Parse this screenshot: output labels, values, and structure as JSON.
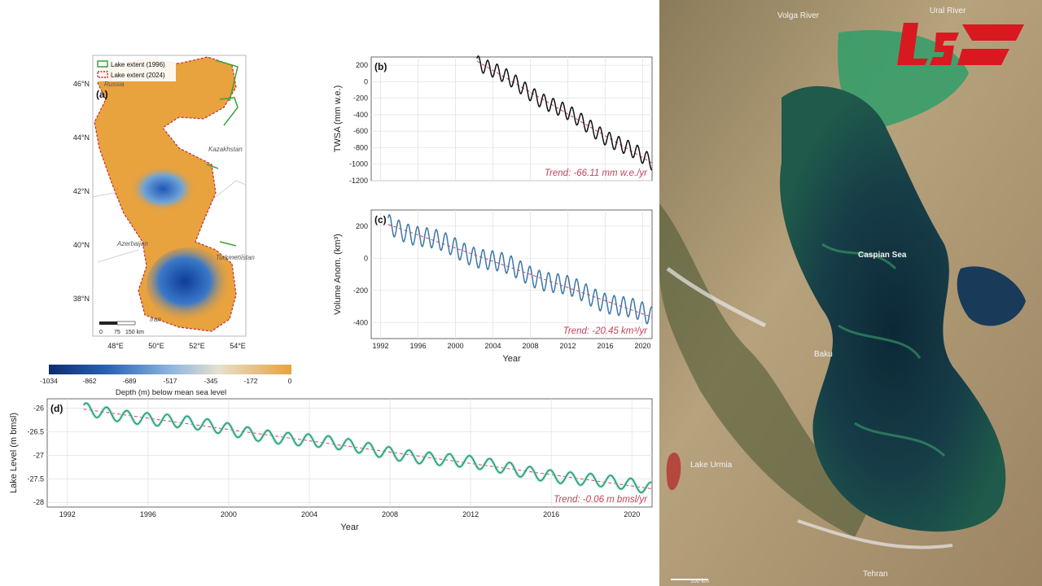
{
  "colors": {
    "twsa_line": "#111111",
    "volume_line": "#3d77a8",
    "level_line": "#1a9a7a",
    "trend_line": "#d0455c",
    "land": "#e8a23e",
    "deep": "#1f56b6",
    "lake_1996": "#3aa13a",
    "lake_2024": "#c8283c",
    "sat_water_deep": "#0f3040",
    "sat_water_bloom": "#2f8f5c",
    "sat_land": "#b09a74",
    "brand_red": "#d81920"
  },
  "panel_a": {
    "label": "(a)",
    "legend": [
      "Lake extent (1996)",
      "Lake extent (2024)"
    ],
    "place_labels": [
      "Russia",
      "Kazakhstan",
      "Azerbaijan",
      "Turkmenistan",
      "Iran"
    ],
    "y_ticks": [
      "46°N",
      "44°N",
      "42°N",
      "40°N",
      "38°N"
    ],
    "x_ticks": [
      "48°E",
      "50°E",
      "52°E",
      "54°E"
    ],
    "scalebar": [
      "0",
      "75",
      "150 km"
    ],
    "colorbar_ticks": [
      "-1034",
      "-862",
      "-689",
      "-517",
      "-345",
      "-172",
      "0"
    ],
    "colorbar_label": "Depth (m) below mean sea level"
  },
  "chart_data": [
    {
      "panel": "(b)",
      "type": "line",
      "ylabel": "TWSA (mm w.e.)",
      "xlim": [
        1991,
        2021
      ],
      "ylim": [
        -1200,
        300
      ],
      "yticks": [
        200,
        0,
        -200,
        -400,
        -600,
        -800,
        -1000,
        -1200
      ],
      "start_year": 2002.3,
      "end_year": 2021.0,
      "trend_start": 250,
      "trend_slope": -66.11,
      "annual_amplitude": 90,
      "trend_text": "Trend: -66.11 mm w.e./yr"
    },
    {
      "panel": "(c)",
      "type": "line",
      "ylabel": "Volume Anom. (km³)",
      "xlabel": "Year",
      "xlim": [
        1991,
        2021
      ],
      "ylim": [
        -500,
        300
      ],
      "yticks": [
        200,
        0,
        -200,
        -400
      ],
      "xticks": [
        1992,
        1996,
        2000,
        2004,
        2008,
        2012,
        2016,
        2020
      ],
      "start_year": 1992.8,
      "end_year": 2021.0,
      "trend_start": 210,
      "trend_slope": -20.45,
      "annual_amplitude": 60,
      "trend_text": "Trend: -20.45 km³/yr"
    },
    {
      "panel": "(d)",
      "type": "line",
      "ylabel": "Lake Level (m bmsl)",
      "xlabel": "Year",
      "xlim": [
        1991,
        2021
      ],
      "ylim": [
        -28.1,
        -25.8
      ],
      "yticks": [
        -26.0,
        -26.5,
        -27.0,
        -27.5,
        -28.0
      ],
      "xticks": [
        1992,
        1996,
        2000,
        2004,
        2008,
        2012,
        2016,
        2020
      ],
      "start_year": 1992.8,
      "end_year": 2021.0,
      "trend_start": -26.02,
      "trend_slope": -0.06,
      "annual_amplitude": 0.13,
      "trend_text": "Trend: -0.06 m bmsl/yr"
    }
  ],
  "satellite": {
    "labels": [
      "Volga River",
      "Ural River",
      "Caspian Sea",
      "Baku",
      "Lake Urmia",
      "Tehran"
    ],
    "scale": "100 km"
  }
}
